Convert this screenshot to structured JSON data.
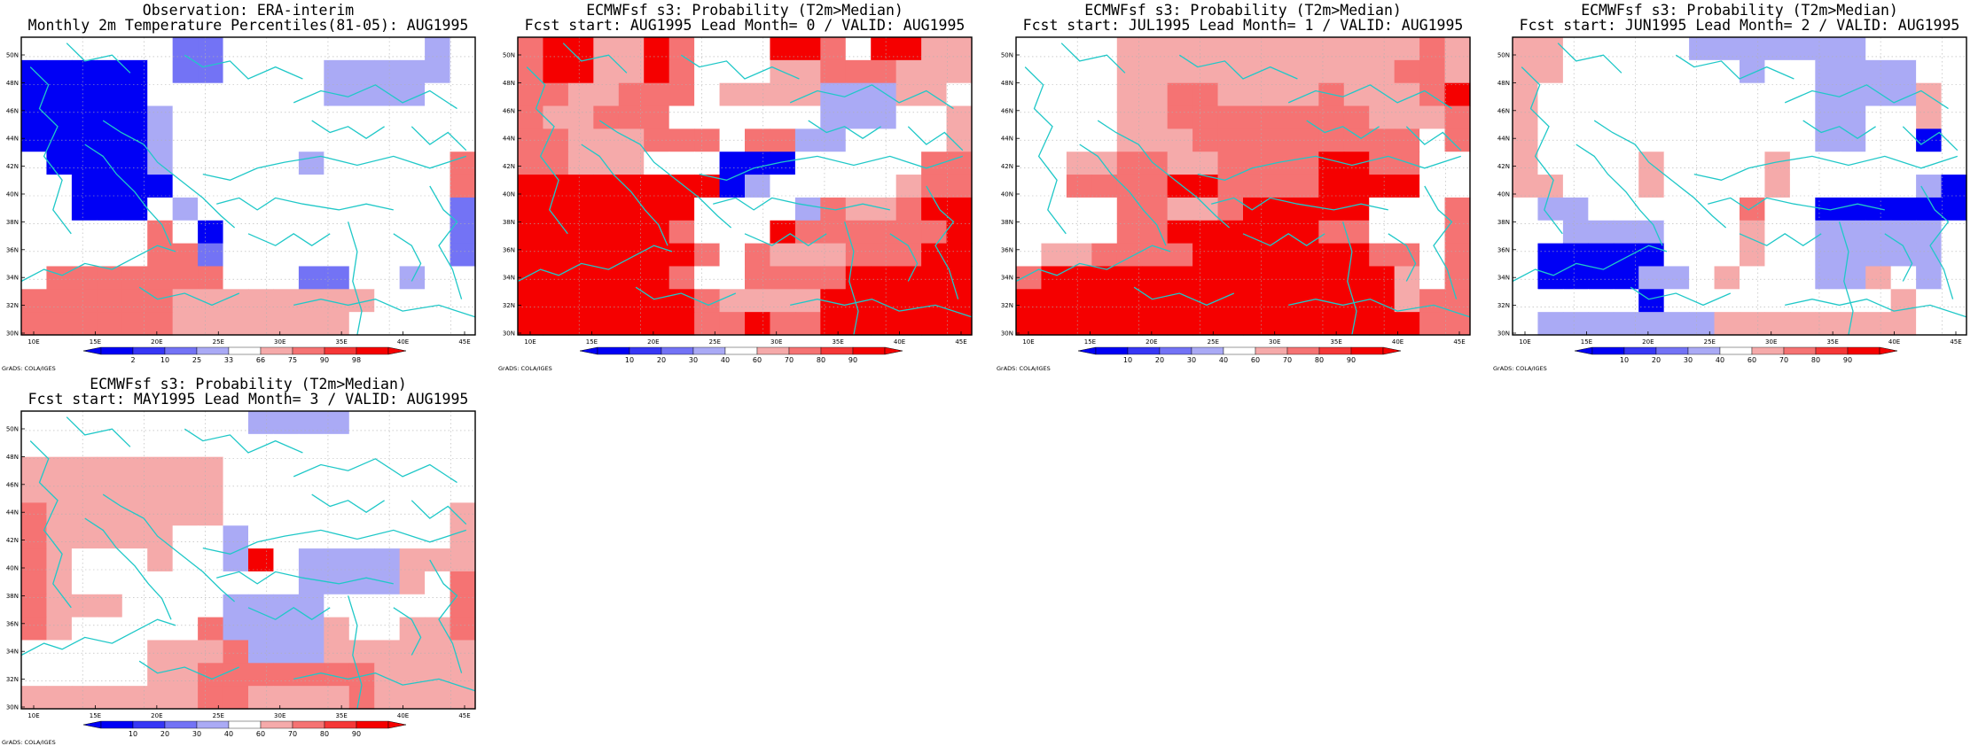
{
  "credit": "GrADS: COLA/IGES",
  "legend_colors": {
    "blues": [
      "#0000f5",
      "#3737f5",
      "#7373f5",
      "#aaaaf5"
    ],
    "reds": [
      "#f5aaaa",
      "#f57373",
      "#f53737",
      "#f50000"
    ],
    "neutral": "#ffffff",
    "coast": "#20c8c8"
  },
  "lon_ticks": [
    "10E",
    "15E",
    "20E",
    "25E",
    "30E",
    "35E",
    "40E",
    "45E"
  ],
  "lat_ticks": [
    "30N",
    "32N",
    "34N",
    "36N",
    "38N",
    "40N",
    "42N",
    "44N",
    "46N",
    "48N",
    "50N"
  ],
  "panels": [
    {
      "title1": "Observation: ERA-interim",
      "title2": "Monthly 2m Temperature Percentiles(81-05): AUG1995",
      "colorbar_labels": [
        "2",
        "10",
        "25",
        "33",
        "66",
        "75",
        "90",
        "98"
      ],
      "grid": [
        "WWWWWWMMWWWWWWWWBW",
        "DDDDDWMMWWWWBBBBBW",
        "DDDDDWWWWWWWBBBBWW",
        "DDDDDBWWWWWWWWWWWW",
        "DDDDDBWWWWWWWWWWWW",
        "WDDDDBWWWWWBWWWWWL",
        "WWDDDDWWWWWWWWWWWL",
        "WWDDDWBWWWWWWWWWWM",
        "WWWWWLWDWWWWWWWWWM",
        "WWWWWLLMWWWWWWWWWM",
        "WLLLLLLLWWWMMWWBWW",
        "LLLLLLPPPPPPPPWWWW",
        "LLLLLLPPPPPPPWWWWW"
      ]
    },
    {
      "title1": "ECMWFsf s3: Probability (T2m>Median)",
      "title2": "Fcst start: AUG1995  Lead Month= 0 / VALID: AUG1995",
      "colorbar_labels": [
        "10",
        "20",
        "30",
        "40",
        "60",
        "70",
        "80",
        "90"
      ],
      "grid": [
        "LRRPPRLWWWRRLWRRPP",
        "LRRPPRLWWWPPLLLPPP",
        "LLPPLLLWPPPPBBBPPW",
        "LPPLLLWWWWWWBBBWWP",
        "LLPPPLLLWLLBBWWWWP",
        "LLPPPWWWDDDWWWWWLL",
        "RRRRRRRRDBWWWWWPLL",
        "RRRRRRRWWWWBLPPLRR",
        "RRRRRRLWWWRLLLLLLR",
        "RRRRRRRLWLPPPLLLRR",
        "RRRRRRLWWLLLLRRRRR",
        "RRRRRRRLPPPPRRRRRR",
        "RRRRRRRLLRLLRRRRRR"
      ]
    },
    {
      "title1": "ECMWFsf s3: Probability (T2m>Median)",
      "title2": "Fcst start: JUL1995  Lead Month= 1 / VALID: AUG1995",
      "colorbar_labels": [
        "10",
        "20",
        "30",
        "40",
        "60",
        "70",
        "80",
        "90"
      ],
      "grid": [
        "WWWWPPPPPPPPPPPPLP",
        "WWWWPPPPPPPPPPPLLP",
        "WWWWPPLLPPPPLPPPLR",
        "WWWWPPLLLLLLLLPPPL",
        "WWWWPPPLLLLLLLLLWL",
        "WWPPLLPPLLLLRRLLWW",
        "WWLLLLRRLLLLRRRRWW",
        "WWWWLLPPLRRRRRWWWL",
        "WWWWLLRRRRRRLLWWWL",
        "WPPLLLLRRRRRRRLLWL",
        "LRRRRRRRRRRRRRRPWL",
        "RRRRRRRRRRRRRRRPLL",
        "RRRRRRRRRRRRRRRRLL"
      ]
    },
    {
      "title1": "ECMWFsf s3: Probability (T2m>Median)",
      "title2": "Fcst start: JUN1995  Lead Month= 2 / VALID: AUG1995",
      "colorbar_labels": [
        "10",
        "20",
        "30",
        "40",
        "60",
        "70",
        "80",
        "90"
      ],
      "grid": [
        "PPWWWWWBBBBBBBWWWW",
        "PPWWWWWWWBWWBBBBWW",
        "PWWWWWWWWWWWBBBBPW",
        "PWWWWWWWWWWWBBWWPW",
        "PWWWWWWWWWWWBBWWDW",
        "PWWWWPWWWWPWWWWWWW",
        "PPWWWPWWWWPWWWWWBD",
        "WBBWWWWWWLWWDDDDDD",
        "WWBBBBWWWPWWBBBBBW",
        "WDDDDDWWWPWWBBBBBW",
        "WDDDDBBWPWWWBBPWBW",
        "WWWWWDWWWWWWWWWPWW",
        "WBBBBBBBPPPPPPPPWW"
      ]
    },
    {
      "title1": "ECMWFsf s3: Probability (T2m>Median)",
      "title2": "Fcst start: MAY1995  Lead Month= 3 / VALID: AUG1995",
      "colorbar_labels": [
        "10",
        "20",
        "30",
        "40",
        "60",
        "70",
        "80",
        "90"
      ],
      "grid": [
        "WWWWWWWWWBBBBWWWWW",
        "WWWWWWWWWWWWWWWWWW",
        "PPPPPPPPWWWWWWWWWW",
        "PPPPPPPPWWWWWWWWWW",
        "LPPPPPPPWWWWWWWWWP",
        "LPPPPPWWBWWWWWWWWP",
        "LPWWWPWWBRWBBBBPPP",
        "LPWWWWWWWWWBBBBPWL",
        "LPPPWWWWBBBBWWWWWL",
        "LPWWWWWLBBBBPWWPPL",
        "WWWWWPPPLBBBPPPPPP",
        "WWWWWPPLLLLLLLPPPP",
        "PPPPPPPLLPPPPLPPPP"
      ]
    }
  ]
}
